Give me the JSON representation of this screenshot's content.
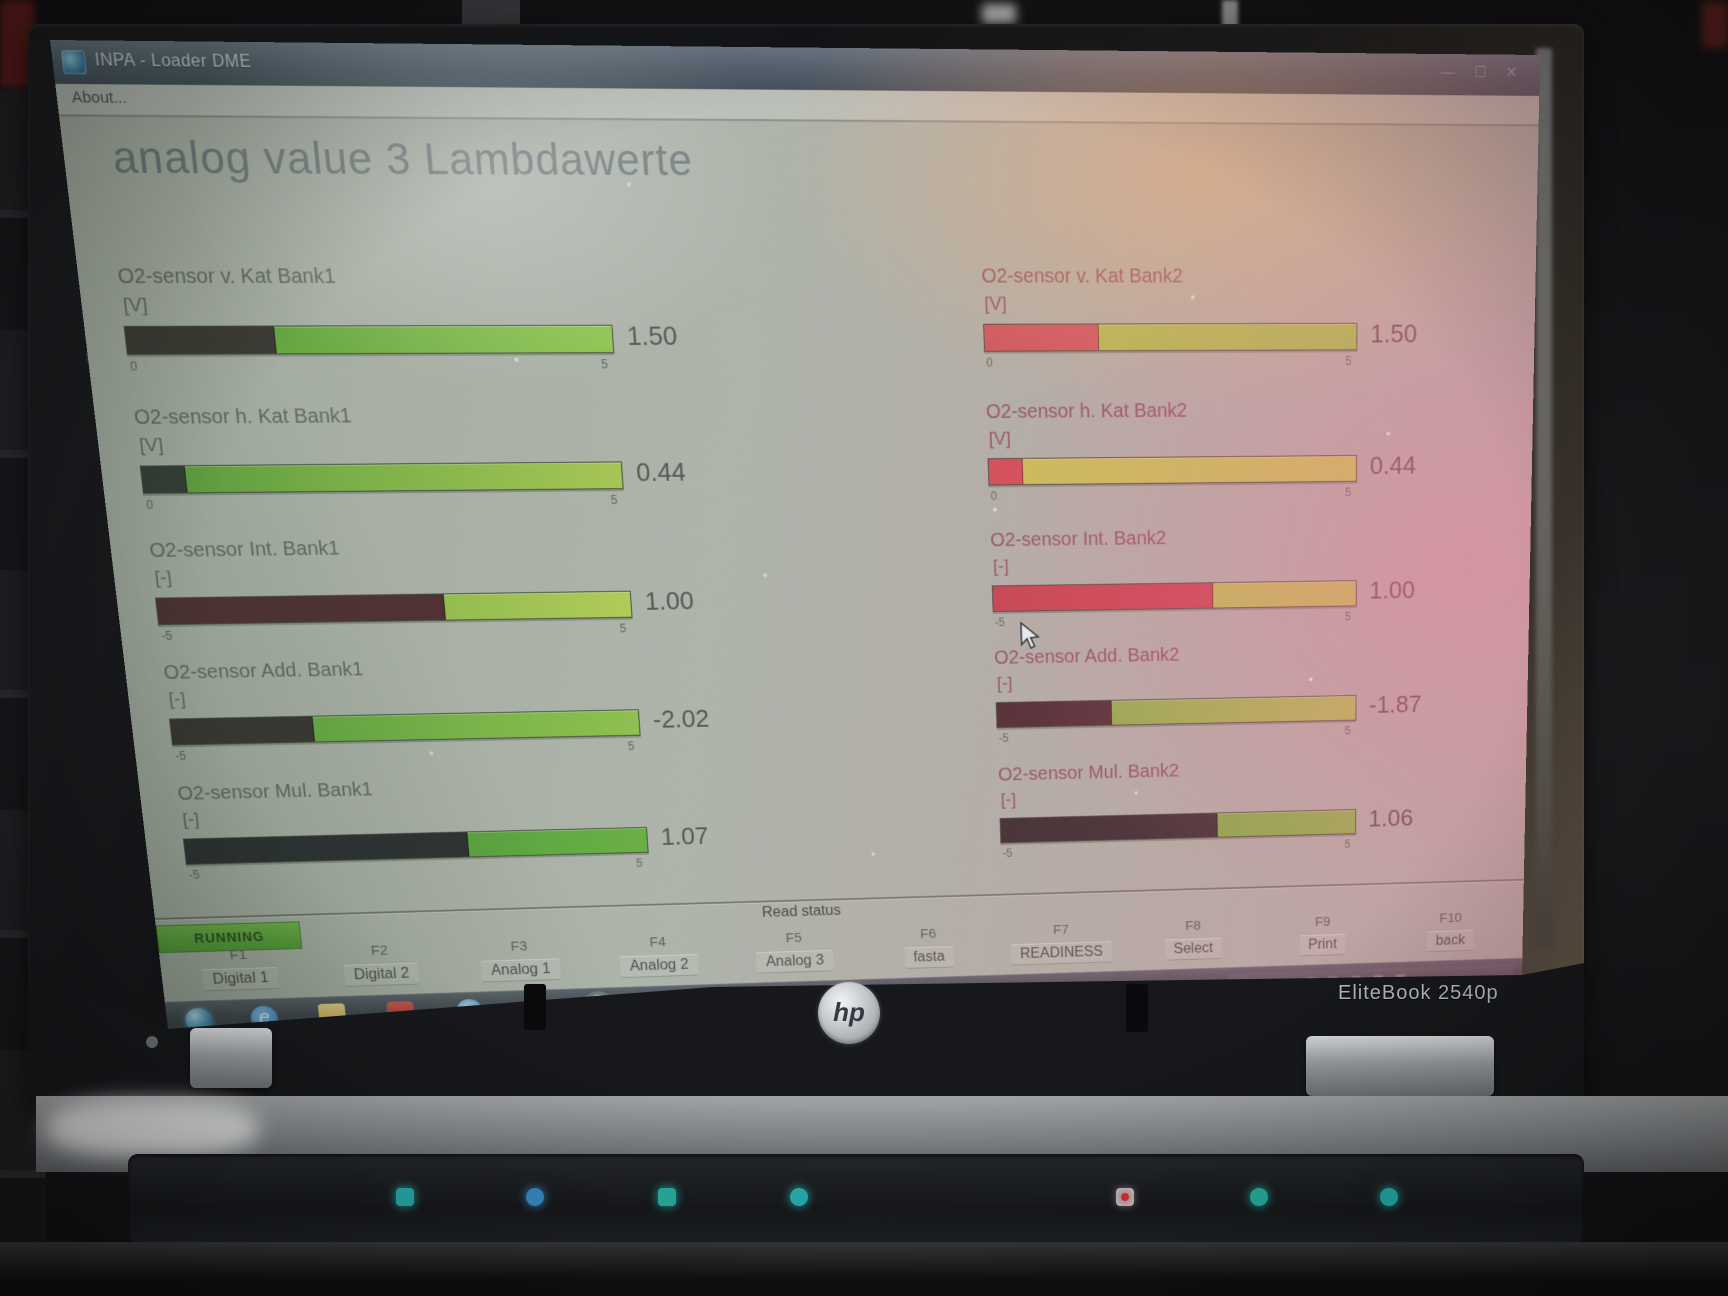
{
  "app": {
    "window_title": "INPA - Loader  DME",
    "menu_about": "About...",
    "page_title": "analog value 3 Lambdawerte",
    "window_controls": "— ☐ ✕"
  },
  "gauges": {
    "left": [
      {
        "label": "O2-sensor v. Kat Bank1",
        "unit": "[V]",
        "value": 1.5,
        "value_display": "1.50",
        "min": 0,
        "max": 5,
        "min_label": "0",
        "max_label": "5",
        "bar_bg": [
          "#4f9c35",
          "#8cc34a"
        ],
        "bar_fill": "#35322d"
      },
      {
        "label": "O2-sensor h. Kat Bank1",
        "unit": "[V]",
        "value": 0.44,
        "value_display": "0.44",
        "min": 0,
        "max": 5,
        "min_label": "0",
        "max_label": "5",
        "bar_bg": [
          "#57a238",
          "#a3c44d"
        ],
        "bar_fill": "#2e3531"
      },
      {
        "label": "O2-sensor Int. Bank1",
        "unit": "[-]",
        "value": 1.0,
        "value_display": "1.00",
        "min": -5,
        "max": 5,
        "min_label": "-5",
        "max_label": "5",
        "bar_bg": [
          "#66a83c",
          "#aeca50"
        ],
        "bar_fill": "#49272c"
      },
      {
        "label": "O2-sensor Add. Bank1",
        "unit": "[-]",
        "value": -2.02,
        "value_display": "-2.02",
        "min": -5,
        "max": 5,
        "min_label": "-5",
        "max_label": "5",
        "bar_bg": [
          "#51a338",
          "#8abd47"
        ],
        "bar_fill": "#322d2a"
      },
      {
        "label": "O2-sensor Mul. Bank1",
        "unit": "[-]",
        "value": 1.07,
        "value_display": "1.07",
        "min": -5,
        "max": 5,
        "min_label": "-5",
        "max_label": "5",
        "bar_bg": [
          "#3f9033",
          "#62ac3b"
        ],
        "bar_fill": "#24282a"
      }
    ],
    "right": [
      {
        "label": "O2-sensor v. Kat Bank2",
        "unit": "[V]",
        "value": 1.5,
        "value_display": "1.50",
        "min": 0,
        "max": 5,
        "min_label": "0",
        "max_label": "5",
        "bar_bg": [
          "#b0bb49",
          "#96c046"
        ],
        "bar_fill": "#c84e58"
      },
      {
        "label": "O2-sensor h. Kat Bank2",
        "unit": "[V]",
        "value": 0.44,
        "value_display": "0.44",
        "min": 0,
        "max": 5,
        "min_label": "0",
        "max_label": "5",
        "bar_bg": [
          "#c3bf51",
          "#bcc94e"
        ],
        "bar_fill": "#cc4650"
      },
      {
        "label": "O2-sensor Int. Bank2",
        "unit": "[-]",
        "value": 1.0,
        "value_display": "1.00",
        "min": -5,
        "max": 5,
        "min_label": "-5",
        "max_label": "5",
        "bar_bg": [
          "#b2b94a",
          "#b5c54d"
        ],
        "bar_fill": "#c03c49"
      },
      {
        "label": "O2-sensor Add. Bank2",
        "unit": "[-]",
        "value": -1.87,
        "value_display": "-1.87",
        "min": -5,
        "max": 5,
        "min_label": "-5",
        "max_label": "5",
        "bar_bg": [
          "#77a83e",
          "#a6c34b"
        ],
        "bar_fill": "#402329"
      },
      {
        "label": "O2-sensor Mul. Bank2",
        "unit": "[-]",
        "value": 1.06,
        "value_display": "1.06",
        "min": -5,
        "max": 5,
        "min_label": "-5",
        "max_label": "5",
        "bar_bg": [
          "#6aa23a",
          "#84b443"
        ],
        "bar_fill": "#2b2527"
      }
    ]
  },
  "status": {
    "running_label": "RUNNING",
    "read_status_label": "Read status"
  },
  "softkeys": [
    {
      "key": "F1",
      "label": "Digital 1"
    },
    {
      "key": "F2",
      "label": "Digital 2"
    },
    {
      "key": "F3",
      "label": "Analog 1"
    },
    {
      "key": "F4",
      "label": "Analog 2"
    },
    {
      "key": "F5",
      "label": "Analog 3"
    },
    {
      "key": "F6",
      "label": "fasta"
    },
    {
      "key": "F7",
      "label": "READINESS"
    },
    {
      "key": "F8",
      "label": "Select"
    },
    {
      "key": "F9",
      "label": "Print"
    },
    {
      "key": "F10",
      "label": "back"
    }
  ],
  "taskbar": {
    "icons": [
      "start-orb",
      "internet-explorer",
      "folder",
      "red-app",
      "media-player",
      "browser",
      "globe-active"
    ]
  },
  "laptop": {
    "logo_text": "hp",
    "model_text": "EliteBook 2540p"
  }
}
